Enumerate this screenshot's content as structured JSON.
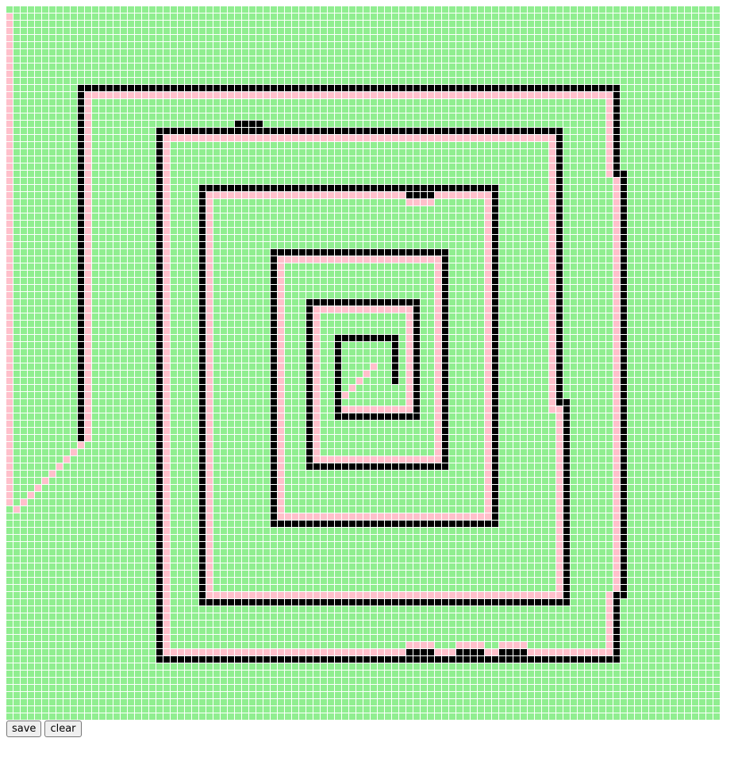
{
  "colors": {
    "empty": "#90ee90",
    "wall": "#000000",
    "path": "#ffc0cb",
    "grid_line": "#ffffff"
  },
  "grid": {
    "cols": 100,
    "rows": 100,
    "walls": [
      [
        10,
        11,
        85,
        11
      ],
      [
        85,
        11,
        85,
        23
      ],
      [
        86,
        23,
        86,
        82
      ],
      [
        85,
        82,
        86,
        82
      ],
      [
        85,
        82,
        85,
        91
      ],
      [
        21,
        91,
        85,
        91
      ],
      [
        21,
        17,
        21,
        91
      ],
      [
        21,
        17,
        77,
        17
      ],
      [
        77,
        17,
        77,
        55
      ],
      [
        78,
        55,
        78,
        83
      ],
      [
        27,
        83,
        78,
        83
      ],
      [
        27,
        25,
        27,
        83
      ],
      [
        27,
        25,
        68,
        25
      ],
      [
        68,
        25,
        68,
        72
      ],
      [
        37,
        72,
        68,
        72
      ],
      [
        37,
        34,
        37,
        72
      ],
      [
        37,
        34,
        61,
        34
      ],
      [
        61,
        34,
        61,
        64
      ],
      [
        42,
        64,
        61,
        64
      ],
      [
        42,
        41,
        42,
        64
      ],
      [
        42,
        41,
        57,
        41
      ],
      [
        57,
        41,
        57,
        57
      ],
      [
        46,
        57,
        57,
        57
      ],
      [
        46,
        46,
        46,
        57
      ],
      [
        46,
        46,
        54,
        46
      ],
      [
        54,
        46,
        54,
        52
      ],
      [
        10,
        11,
        10,
        60
      ],
      [
        32,
        16,
        35,
        16
      ],
      [
        56,
        26,
        59,
        26
      ],
      [
        56,
        90,
        59,
        90
      ],
      [
        63,
        90,
        66,
        90
      ],
      [
        69,
        90,
        72,
        90
      ]
    ],
    "path": [
      [
        0,
        1,
        0,
        69
      ],
      [
        11,
        12,
        84,
        12
      ],
      [
        11,
        12,
        11,
        60
      ],
      [
        84,
        12,
        84,
        23
      ],
      [
        85,
        24,
        85,
        81
      ],
      [
        84,
        82,
        84,
        90
      ],
      [
        22,
        90,
        84,
        90
      ],
      [
        22,
        18,
        76,
        18
      ],
      [
        22,
        18,
        22,
        89
      ],
      [
        76,
        18,
        76,
        56
      ],
      [
        77,
        56,
        77,
        82
      ],
      [
        28,
        82,
        77,
        82
      ],
      [
        28,
        26,
        67,
        26
      ],
      [
        28,
        26,
        28,
        81
      ],
      [
        67,
        26,
        67,
        71
      ],
      [
        38,
        71,
        67,
        71
      ],
      [
        38,
        35,
        60,
        35
      ],
      [
        38,
        35,
        38,
        70
      ],
      [
        60,
        35,
        60,
        63
      ],
      [
        43,
        63,
        60,
        63
      ],
      [
        43,
        42,
        56,
        42
      ],
      [
        43,
        42,
        43,
        62
      ],
      [
        56,
        42,
        56,
        56
      ],
      [
        47,
        56,
        55,
        56
      ],
      [
        56,
        27,
        59,
        27
      ],
      [
        56,
        89,
        59,
        89
      ],
      [
        63,
        89,
        66,
        89
      ],
      [
        69,
        89,
        72,
        89
      ]
    ],
    "path_diagonals": [
      [
        10,
        61,
        1,
        70
      ],
      [
        51,
        50,
        47,
        54
      ]
    ]
  },
  "buttons": {
    "save_label": "save",
    "clear_label": "clear"
  }
}
